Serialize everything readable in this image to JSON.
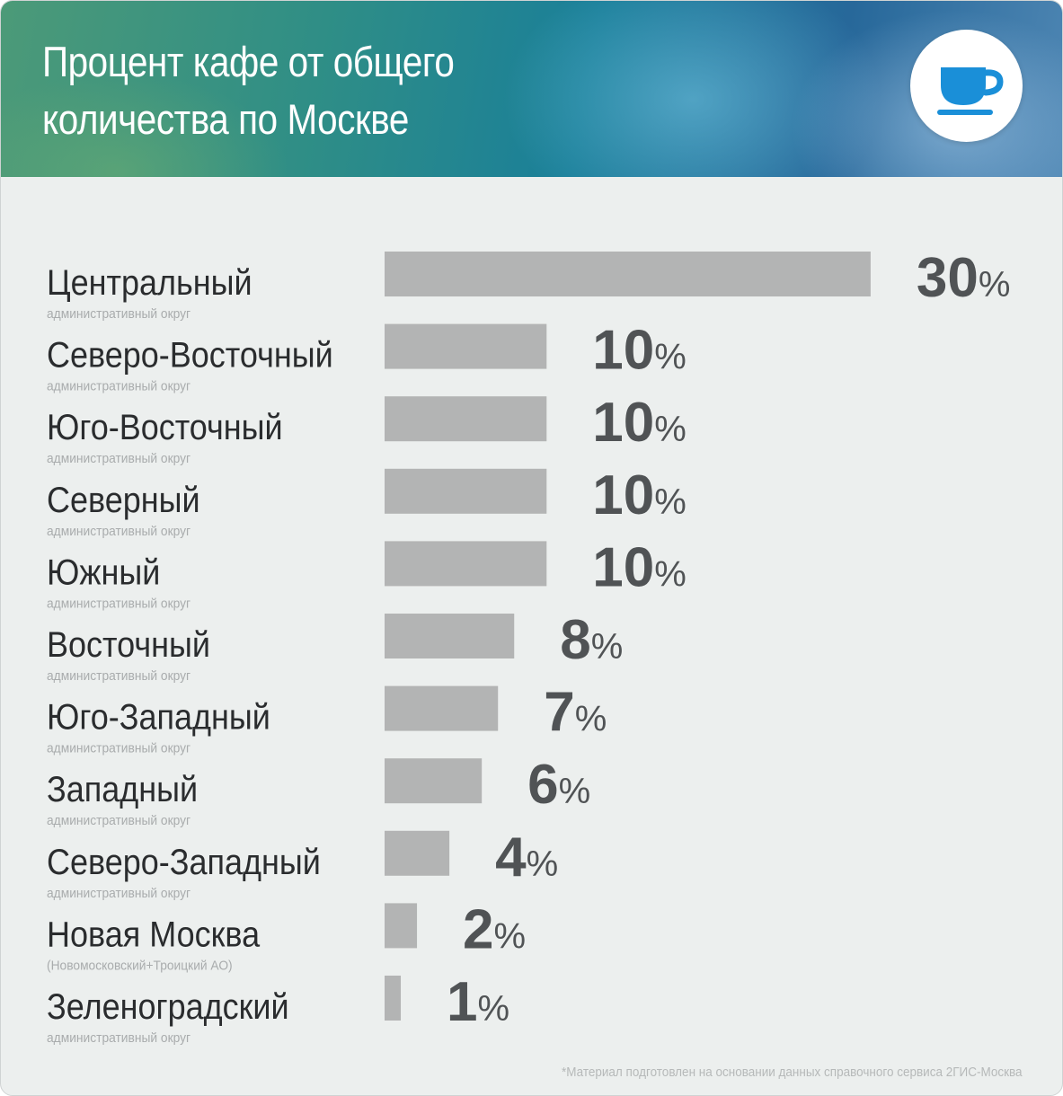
{
  "title_lines": [
    "Процент кафе от общего",
    "количества по Москве"
  ],
  "icon": "coffee-cup-icon",
  "colors": {
    "bar": "#b3b4b4",
    "value": "#505355",
    "label": "#2a2c2e",
    "sublabel": "#a9acad",
    "icon": "#1a8fd8"
  },
  "chart_data": {
    "type": "bar",
    "orientation": "horizontal",
    "categories": [
      "Центральный",
      "Северо-Восточный",
      "Юго-Восточный",
      "Северный",
      "Южный",
      "Восточный",
      "Юго-Западный",
      "Западный",
      "Северо-Западный",
      "Новая Москва",
      "Зеленоградский"
    ],
    "sublabels": [
      "административный округ",
      "административный округ",
      "административный округ",
      "административный округ",
      "административный округ",
      "административный округ",
      "административный округ",
      "административный округ",
      "административный округ",
      "(Новомосковский+Троицкий АО)",
      "административный округ"
    ],
    "values": [
      30,
      10,
      10,
      10,
      10,
      8,
      7,
      6,
      4,
      2,
      1
    ],
    "value_suffix": "%",
    "grid": false
  },
  "footnote": "*Материал подготовлен на основании данных справочного сервиса 2ГИС-Москва"
}
